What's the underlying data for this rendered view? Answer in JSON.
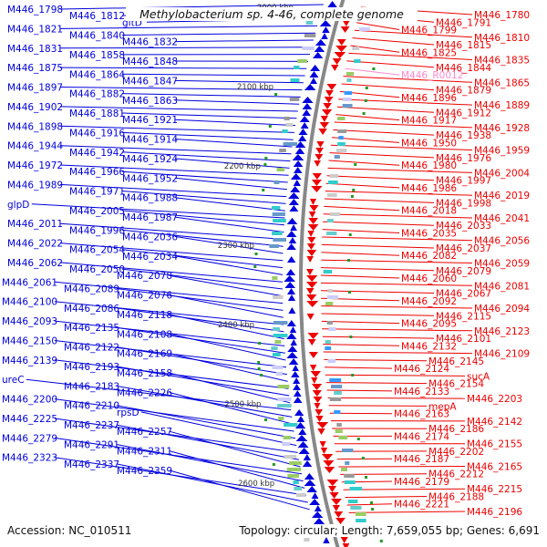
{
  "title": "Methylobacterium sp. 4-46, complete genome",
  "footer": {
    "accession": "Accession: NC_010511",
    "info": "Topology: circular; Length: 7,659,055 bp; Genes: 6,691"
  },
  "colors": {
    "forward": "#0000dd",
    "reverse": "#ee0000",
    "rna": "#ff88cc",
    "backbone": "#888888"
  },
  "scale_labels": [
    "2000 kbp",
    "2100 kbp",
    "2200 kbp",
    "2300 kbp",
    "2400 kbp",
    "2500 kbp",
    "2600 kbp"
  ],
  "left_labels": [
    "M446_1798",
    "M446_1812",
    "gltD",
    "M446_1821",
    "M446_1840",
    "M446_1832",
    "M446_1831",
    "M446_1858",
    "M446_1848",
    "M446_1875",
    "M446_1864",
    "M446_1847",
    "M446_1897",
    "M446_1882",
    "M446_1863",
    "M446_1902",
    "M446_1881",
    "M446_1921",
    "M446_1898",
    "M446_1916",
    "M446_1914",
    "M446_1944",
    "M446_1942",
    "M446_1924",
    "M446_1972",
    "M446_1966",
    "M446_1952",
    "M446_1989",
    "M446_1971",
    "M446_1988",
    "glpD",
    "M446_2005",
    "M446_1987",
    "M446_2011",
    "M446_1996",
    "M446_2036",
    "M446_2022",
    "M446_2054",
    "M446_2034",
    "M446_2062",
    "M446_2050",
    "M446_2078",
    "M446_2061",
    "M446_2089",
    "M446_2076",
    "M446_2100",
    "M446_2086",
    "M446_2118",
    "M446_2093",
    "M446_2135",
    "M446_2108",
    "M446_2150",
    "M446_2122",
    "M446_2169",
    "M446_2139",
    "M446_2193",
    "M446_2158",
    "ureC",
    "M446_2183",
    "M446_2226",
    "M446_2200",
    "M446_2210",
    "rpsD",
    "M446_2225",
    "M446_2237",
    "M446_2257",
    "M446_2279",
    "M446_2291",
    "M446_2311",
    "M446_2323",
    "M446_2337",
    "M446_2359"
  ],
  "right_labels": [
    "M446_1780",
    "M446_1791",
    "M446_1799",
    "M446_1810",
    "M446_1815",
    "M446_1825",
    "M446_1835",
    "M446_1844",
    "M446_R0012",
    "M446_1865",
    "M446_1879",
    "M446_1896",
    "M446_1889",
    "M446_1912",
    "M446_1917",
    "M446_1928",
    "M446_1938",
    "M446_1950",
    "M446_1959",
    "M446_1976",
    "M446_1980",
    "M446_2004",
    "M446_1997",
    "M446_1986",
    "M446_2019",
    "M446_1998",
    "M446_2018",
    "M446_2041",
    "M446_2033",
    "M446_2035",
    "M446_2056",
    "M446_2037",
    "M446_2082",
    "M446_2059",
    "M446_2079",
    "M446_2060",
    "M446_2081",
    "M446_2067",
    "M446_2092",
    "M446_2094",
    "M446_2115",
    "M446_2095",
    "M446_2123",
    "M446_2101",
    "M446_2132",
    "M446_2109",
    "M446_2145",
    "M446_2124",
    "sucA",
    "M446_2154",
    "M446_2133",
    "M446_2203",
    "mepA",
    "M446_2163",
    "M446_2142",
    "M446_2186",
    "M446_2174",
    "M446_2155",
    "M446_2202",
    "M446_2187",
    "M446_2165",
    "M446_2212",
    "M446_2179",
    "M446_2215",
    "M446_2188",
    "M446_2221",
    "M446_2196"
  ]
}
